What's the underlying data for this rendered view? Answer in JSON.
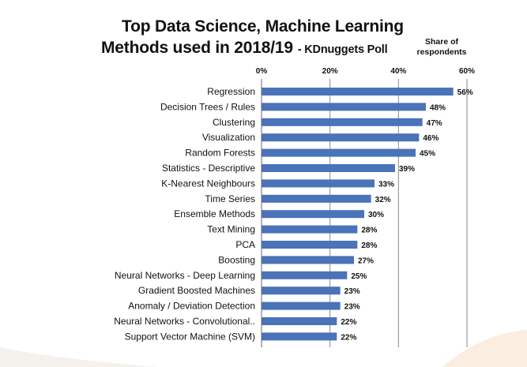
{
  "chart_data": {
    "type": "bar",
    "orientation": "horizontal",
    "title_line1": "Top Data Science, Machine Learning",
    "title_line2": "Methods used in 2018/19",
    "title_source": "- KDnuggets Poll",
    "value_axis_title": "Share of respondents",
    "value_axis_title_line1": "Share of",
    "value_axis_title_line2": "respondents",
    "x_ticks": [
      "0%",
      "20%",
      "40%",
      "60%"
    ],
    "x_tick_values": [
      0,
      20,
      40,
      60
    ],
    "xlim": [
      0,
      60
    ],
    "grid": true,
    "bar_color": "#4a73b8",
    "categories": [
      "Regression",
      "Decision Trees / Rules",
      "Clustering",
      "Visualization",
      "Random Forests",
      "Statistics - Descriptive",
      "K-Nearest Neighbours",
      "Time Series",
      "Ensemble Methods",
      "Text Mining",
      "PCA",
      "Boosting",
      "Neural Networks - Deep Learning",
      "Gradient Boosted Machines",
      "Anomaly / Deviation Detection",
      "Neural Networks - Convolutional..",
      "Support Vector Machine (SVM)"
    ],
    "values": [
      56,
      48,
      47,
      46,
      45,
      39,
      33,
      32,
      30,
      28,
      28,
      27,
      25,
      23,
      23,
      22,
      22
    ],
    "value_labels": [
      "56%",
      "48%",
      "47%",
      "46%",
      "45%",
      "39%",
      "33%",
      "32%",
      "30%",
      "28%",
      "28%",
      "27%",
      "25%",
      "23%",
      "23%",
      "22%",
      "22%"
    ]
  }
}
